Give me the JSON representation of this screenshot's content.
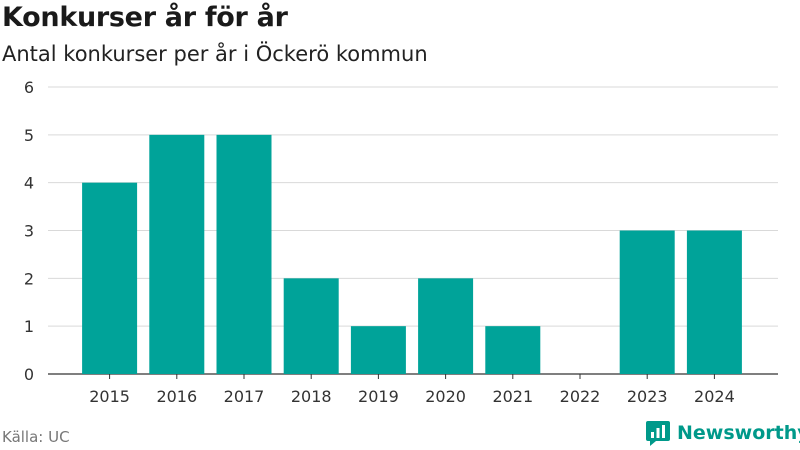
{
  "header": {
    "title": "Konkurser år för år",
    "subtitle": "Antal konkurser per år i Öckerö kommun"
  },
  "footer": {
    "source": "Källa: UC",
    "brand": "Newsworthy",
    "brand_icon": "newsworthy-logo-icon"
  },
  "colors": {
    "bar": "#00a399",
    "grid": "#d9d9d9",
    "brand": "#00998a"
  },
  "chart_data": {
    "type": "bar",
    "categories": [
      "2015",
      "2016",
      "2017",
      "2018",
      "2019",
      "2020",
      "2021",
      "2022",
      "2023",
      "2024"
    ],
    "values": [
      4,
      5,
      5,
      2,
      1,
      2,
      1,
      0,
      3,
      3
    ],
    "title": "Konkurser år för år",
    "subtitle": "Antal konkurser per år i Öckerö kommun",
    "xlabel": "",
    "ylabel": "",
    "ylim": [
      0,
      6
    ],
    "yticks": [
      0,
      1,
      2,
      3,
      4,
      5,
      6
    ],
    "grid": true,
    "legend": "none"
  }
}
